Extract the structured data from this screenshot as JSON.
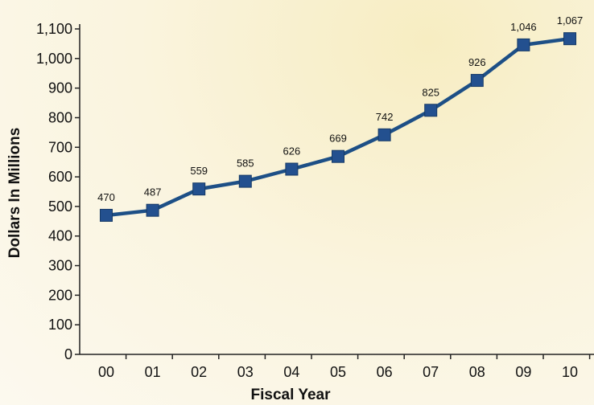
{
  "chart_data": {
    "type": "line",
    "x": [
      "00",
      "01",
      "02",
      "03",
      "04",
      "05",
      "06",
      "07",
      "08",
      "09",
      "10"
    ],
    "values": [
      470,
      487,
      559,
      585,
      626,
      669,
      742,
      825,
      926,
      1046,
      1067
    ],
    "data_labels": [
      "470",
      "487",
      "559",
      "585",
      "626",
      "669",
      "742",
      "825",
      "926",
      "1,046",
      "1,067"
    ],
    "xlabel": "Fiscal Year",
    "ylabel": "Dollars In Millions",
    "ylim": [
      0,
      1100
    ],
    "yticks": [
      0,
      100,
      200,
      300,
      400,
      500,
      600,
      700,
      800,
      900,
      1000,
      1100
    ],
    "ytick_labels": [
      "0",
      "100",
      "200",
      "300",
      "400",
      "500",
      "600",
      "700",
      "800",
      "900",
      "1,000",
      "1,100"
    ],
    "grid": false,
    "legend": "none",
    "colors": {
      "line": "#1d4f86",
      "marker": "#23508f",
      "marker_stroke": "#163a66",
      "axis": "#222222"
    }
  }
}
